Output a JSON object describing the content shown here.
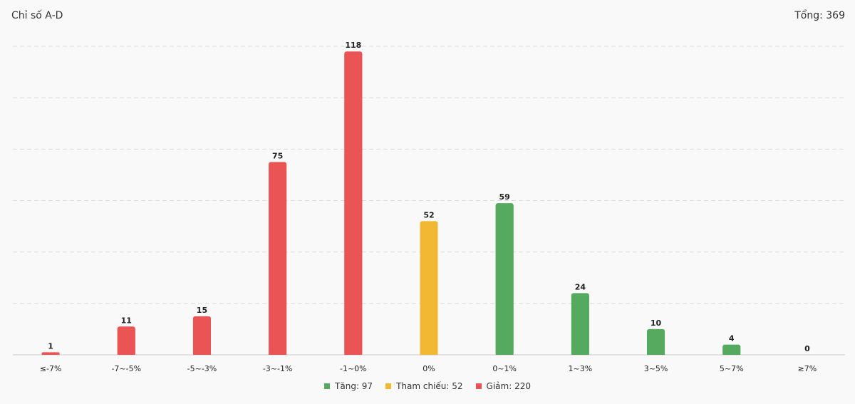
{
  "header": {
    "title": "Chỉ số A-D",
    "total": "Tổng: 369"
  },
  "colors": {
    "up": "#55aa5f",
    "ref": "#f2b833",
    "down": "#eb5455",
    "grid": "#dcdcdc",
    "axis": "#cccccc"
  },
  "chart_data": {
    "type": "bar",
    "categories": [
      "≤-7%",
      "-7~-5%",
      "-5~-3%",
      "-3~-1%",
      "-1~0%",
      "0%",
      "0~1%",
      "1~3%",
      "3~5%",
      "5~7%",
      "≥7%"
    ],
    "values": [
      1,
      11,
      15,
      75,
      118,
      52,
      59,
      24,
      10,
      4,
      0
    ],
    "value_labels": [
      "1",
      "11",
      "15",
      "75",
      "118",
      "52",
      "59",
      "24",
      "10",
      "4",
      "0"
    ],
    "bar_groups": [
      "down",
      "down",
      "down",
      "down",
      "down",
      "ref",
      "up",
      "up",
      "up",
      "up",
      "up"
    ],
    "ylim": [
      0,
      120
    ],
    "grid": true
  },
  "legend": {
    "items": [
      {
        "key": "up",
        "label": "Tăng: 97"
      },
      {
        "key": "ref",
        "label": "Tham chiếu: 52"
      },
      {
        "key": "down",
        "label": "Giảm: 220"
      }
    ]
  }
}
